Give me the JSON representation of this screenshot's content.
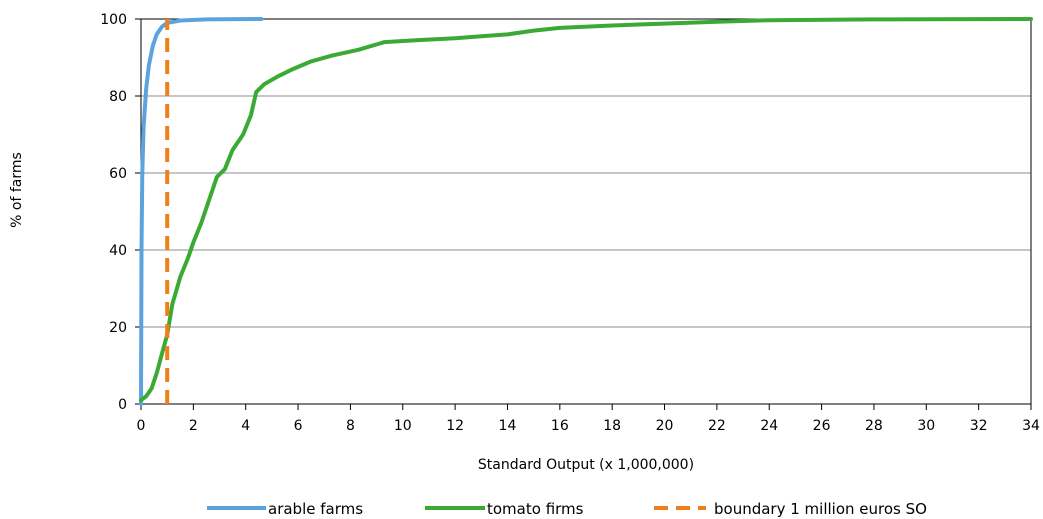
{
  "chart_data": {
    "type": "line",
    "title": "",
    "xlabel": "Standard Output (x 1,000,000)",
    "ylabel": "% of farms",
    "xlim": [
      0,
      34
    ],
    "ylim": [
      0,
      100
    ],
    "x_ticks": [
      "0",
      "2",
      "4",
      "6",
      "8",
      "10",
      "12",
      "14",
      "16",
      "18",
      "20",
      "22",
      "24",
      "26",
      "28",
      "30",
      "32",
      "34"
    ],
    "y_ticks": [
      "0",
      "20",
      "40",
      "60",
      "80",
      "100"
    ],
    "grid": "horizontal",
    "legend_position": "bottom",
    "series": [
      {
        "name": "arable farms",
        "color": "#5BA3DF",
        "style": "solid",
        "points": [
          [
            0,
            0
          ],
          [
            0.02,
            40
          ],
          [
            0.05,
            60
          ],
          [
            0.1,
            72
          ],
          [
            0.2,
            82
          ],
          [
            0.3,
            88
          ],
          [
            0.45,
            93
          ],
          [
            0.6,
            96
          ],
          [
            0.8,
            98
          ],
          [
            1.0,
            99
          ],
          [
            1.5,
            99.6
          ],
          [
            2.5,
            99.9
          ],
          [
            4.6,
            100
          ]
        ]
      },
      {
        "name": "tomato firms",
        "color": "#3AAA35",
        "style": "solid",
        "points": [
          [
            0,
            1
          ],
          [
            0.2,
            2
          ],
          [
            0.4,
            4
          ],
          [
            0.6,
            8
          ],
          [
            0.8,
            13
          ],
          [
            1.0,
            18
          ],
          [
            1.2,
            26
          ],
          [
            1.5,
            33
          ],
          [
            1.8,
            38
          ],
          [
            2.0,
            42
          ],
          [
            2.3,
            47
          ],
          [
            2.6,
            53
          ],
          [
            2.9,
            59
          ],
          [
            3.2,
            61
          ],
          [
            3.5,
            66
          ],
          [
            3.9,
            70
          ],
          [
            4.2,
            75
          ],
          [
            4.4,
            81
          ],
          [
            4.7,
            83
          ],
          [
            5.2,
            85
          ],
          [
            5.8,
            87
          ],
          [
            6.5,
            89
          ],
          [
            7.3,
            90.5
          ],
          [
            8.3,
            92
          ],
          [
            9.3,
            94
          ],
          [
            10.5,
            94.5
          ],
          [
            12,
            95
          ],
          [
            13,
            95.5
          ],
          [
            14,
            96
          ],
          [
            15,
            97
          ],
          [
            16,
            97.7
          ],
          [
            18,
            98.3
          ],
          [
            20,
            98.8
          ],
          [
            22,
            99.3
          ],
          [
            24,
            99.7
          ],
          [
            28,
            99.9
          ],
          [
            34,
            100
          ]
        ]
      },
      {
        "name": "boundary 1 million euros SO",
        "color": "#F07F1A",
        "style": "dashed",
        "points": [
          [
            1,
            0
          ],
          [
            1,
            100
          ]
        ]
      }
    ]
  }
}
